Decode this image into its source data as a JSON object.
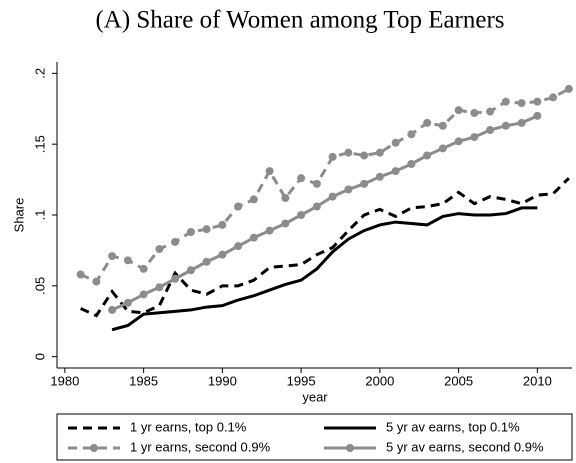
{
  "chart_data": {
    "type": "line",
    "title": "(A) Share of Women among Top Earners",
    "xlabel": "year",
    "ylabel": "Share",
    "xlim": [
      1979.5,
      2012.2
    ],
    "ylim": [
      -0.008,
      0.208
    ],
    "xticks": [
      1980,
      1985,
      1990,
      1995,
      2000,
      2005,
      2010
    ],
    "yticks": [
      {
        "value": 0,
        "label": "0"
      },
      {
        "value": 0.05,
        "label": ".05"
      },
      {
        "value": 0.1,
        "label": ".1"
      },
      {
        "value": 0.15,
        "label": ".15"
      },
      {
        "value": 0.2,
        "label": ".2"
      }
    ],
    "grid": false,
    "legend": "bottom",
    "series": [
      {
        "name": "1 yr earns, top 0.1%",
        "color": "#000000",
        "dashed": true,
        "markers": false,
        "x": [
          1981,
          1982,
          1983,
          1984,
          1985,
          1986,
          1987,
          1988,
          1989,
          1990,
          1991,
          1992,
          1993,
          1994,
          1995,
          1996,
          1997,
          1998,
          1999,
          2000,
          2001,
          2002,
          2003,
          2004,
          2005,
          2006,
          2007,
          2008,
          2009,
          2010,
          2011,
          2012
        ],
        "values": [
          0.034,
          0.029,
          0.046,
          0.032,
          0.031,
          0.036,
          0.059,
          0.047,
          0.044,
          0.05,
          0.05,
          0.054,
          0.063,
          0.064,
          0.065,
          0.072,
          0.077,
          0.089,
          0.1,
          0.104,
          0.099,
          0.105,
          0.106,
          0.108,
          0.116,
          0.108,
          0.113,
          0.111,
          0.108,
          0.114,
          0.115,
          0.126
        ]
      },
      {
        "name": "5 yr av earns, top 0.1%",
        "color": "#000000",
        "dashed": false,
        "markers": false,
        "x": [
          1983,
          1984,
          1985,
          1986,
          1987,
          1988,
          1989,
          1990,
          1991,
          1992,
          1993,
          1994,
          1995,
          1996,
          1997,
          1998,
          1999,
          2000,
          2001,
          2002,
          2003,
          2004,
          2005,
          2006,
          2007,
          2008,
          2009,
          2010
        ],
        "values": [
          0.019,
          0.022,
          0.03,
          0.031,
          0.032,
          0.033,
          0.035,
          0.036,
          0.04,
          0.043,
          0.047,
          0.051,
          0.054,
          0.062,
          0.074,
          0.083,
          0.089,
          0.093,
          0.095,
          0.094,
          0.093,
          0.099,
          0.101,
          0.1,
          0.1,
          0.101,
          0.105,
          0.105
        ]
      },
      {
        "name": "1 yr earns, second 0.9%",
        "color": "#8c8c8c",
        "dashed": true,
        "markers": true,
        "x": [
          1981,
          1982,
          1983,
          1984,
          1985,
          1986,
          1987,
          1988,
          1989,
          1990,
          1991,
          1992,
          1993,
          1994,
          1995,
          1996,
          1997,
          1998,
          1999,
          2000,
          2001,
          2002,
          2003,
          2004,
          2005,
          2006,
          2007,
          2008,
          2009,
          2010,
          2011,
          2012
        ],
        "values": [
          0.058,
          0.053,
          0.071,
          0.068,
          0.062,
          0.076,
          0.081,
          0.088,
          0.09,
          0.093,
          0.106,
          0.111,
          0.131,
          0.112,
          0.126,
          0.122,
          0.141,
          0.144,
          0.142,
          0.144,
          0.151,
          0.157,
          0.165,
          0.163,
          0.174,
          0.172,
          0.173,
          0.18,
          0.179,
          0.18,
          0.183,
          0.189
        ]
      },
      {
        "name": "5 yr av earns, second 0.9%",
        "color": "#8c8c8c",
        "dashed": false,
        "markers": true,
        "x": [
          1983,
          1984,
          1985,
          1986,
          1987,
          1988,
          1989,
          1990,
          1991,
          1992,
          1993,
          1994,
          1995,
          1996,
          1997,
          1998,
          1999,
          2000,
          2001,
          2002,
          2003,
          2004,
          2005,
          2006,
          2007,
          2008,
          2009,
          2010
        ],
        "values": [
          0.033,
          0.038,
          0.044,
          0.049,
          0.055,
          0.061,
          0.067,
          0.072,
          0.078,
          0.084,
          0.089,
          0.094,
          0.1,
          0.106,
          0.113,
          0.118,
          0.122,
          0.127,
          0.131,
          0.136,
          0.142,
          0.147,
          0.152,
          0.155,
          0.16,
          0.163,
          0.165,
          0.17
        ]
      }
    ]
  }
}
